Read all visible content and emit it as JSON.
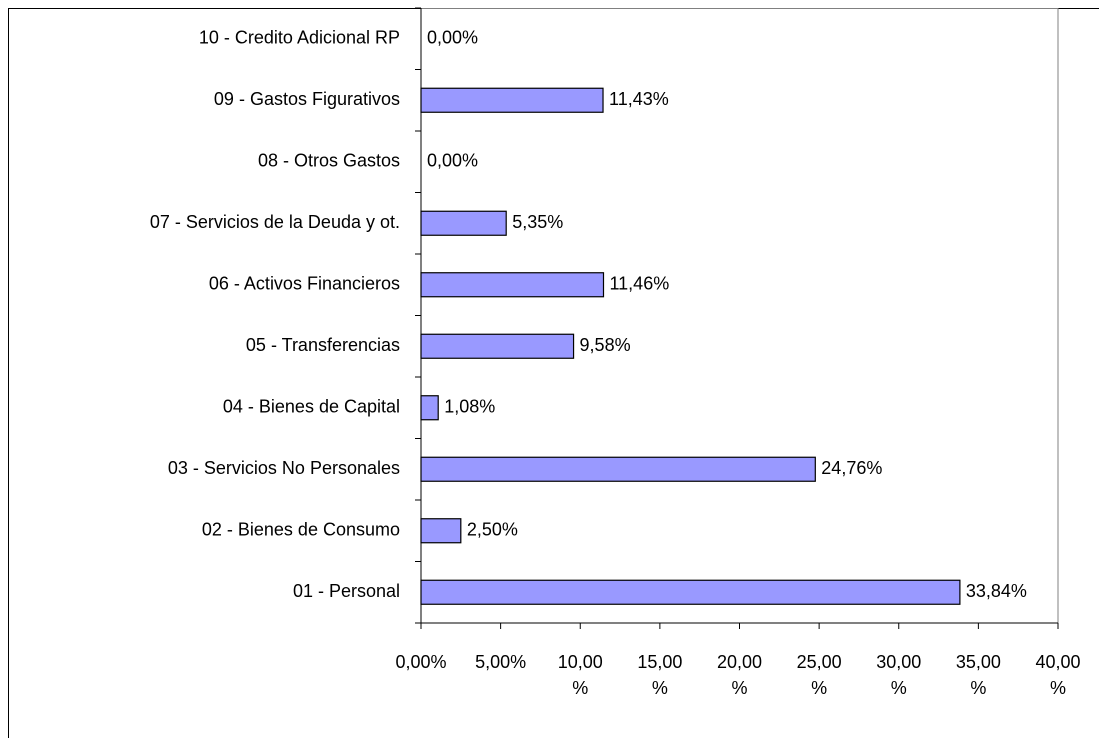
{
  "chart_data": {
    "type": "bar",
    "orientation": "horizontal",
    "categories": [
      "01 - Personal",
      "02 - Bienes de Consumo",
      "03 - Servicios No Personales",
      "04 - Bienes de Capital",
      "05 - Transferencias",
      "06 - Activos Financieros",
      "07 - Servicios de la Deuda y ot.",
      "08 - Otros Gastos",
      "09 - Gastos Figurativos",
      "10 - Credito Adicional RP"
    ],
    "values": [
      33.84,
      2.5,
      24.76,
      1.08,
      9.58,
      11.46,
      5.35,
      0.0,
      11.43,
      0.0
    ],
    "value_labels": [
      "33,84%",
      "2,50%",
      "24,76%",
      "1,08%",
      "9,58%",
      "11,46%",
      "5,35%",
      "0,00%",
      "11,43%",
      "0,00%"
    ],
    "color": "#9999ff",
    "xlim": [
      0,
      40
    ],
    "xticks": [
      {
        "value": 0,
        "label": "0,00%"
      },
      {
        "value": 5,
        "label": "5,00%"
      },
      {
        "value": 10,
        "label": "10,00 %"
      },
      {
        "value": 15,
        "label": "15,00 %"
      },
      {
        "value": 20,
        "label": "20,00 %"
      },
      {
        "value": 25,
        "label": "25,00 %"
      },
      {
        "value": 30,
        "label": "30,00 %"
      },
      {
        "value": 35,
        "label": "35,00 %"
      },
      {
        "value": 40,
        "label": "40,00 %"
      }
    ]
  }
}
